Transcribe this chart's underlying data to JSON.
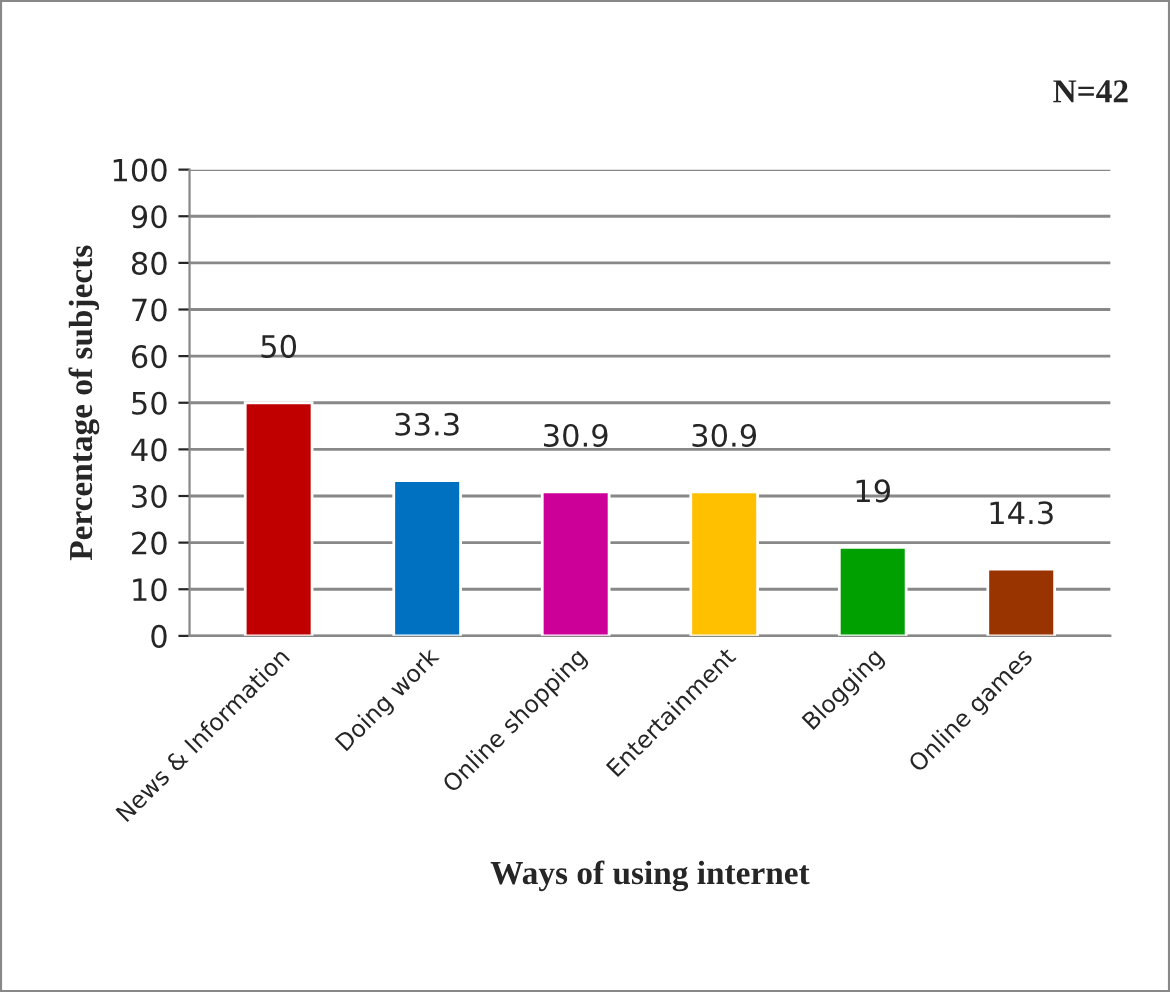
{
  "chart_data": {
    "type": "bar",
    "categories": [
      "News & Information",
      "Doing work",
      "Online shopping",
      "Entertainment",
      "Blogging",
      "Online games"
    ],
    "values": [
      50,
      33.3,
      30.9,
      30.9,
      19,
      14.3
    ],
    "colors": [
      "#c00000",
      "#0070c0",
      "#cc0099",
      "#ffc000",
      "#00a000",
      "#993300"
    ],
    "xlabel": "Ways of using internet",
    "ylabel": "Percentage of subjects",
    "annotations": [
      "N=42"
    ],
    "ylim": [
      0,
      100
    ],
    "yticks": [
      0,
      10,
      20,
      30,
      40,
      50,
      60,
      70,
      80,
      90,
      100
    ],
    "grid": "y",
    "data_labels": true,
    "legend": false
  }
}
